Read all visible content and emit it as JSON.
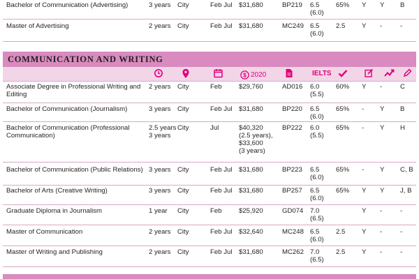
{
  "top_rows": [
    {
      "name": "Bachelor of Communication (Advertising)",
      "duration": "3 years",
      "location": "City",
      "intake": "Feb Jul",
      "fee": "$31,680",
      "code": "BP219",
      "ielts": "6.5\n(6.0)",
      "atar": "65%",
      "a": "Y",
      "b": "Y",
      "c": "B"
    },
    {
      "name": "Master of Advertising",
      "duration": "2 years",
      "location": "City",
      "intake": "Feb Jul",
      "fee": "$31,680",
      "code": "MC249",
      "ielts": "6.5\n(6.0)",
      "atar": "2.5",
      "a": "Y",
      "b": "-",
      "c": "-"
    }
  ],
  "section": {
    "title": "COMMUNICATION AND WRITING",
    "icons": {
      "duration": "clock-icon",
      "location": "location-pin-icon",
      "intake": "calendar-icon",
      "fee": "dollar-icon",
      "fee_year": "2020",
      "code": "document-icon",
      "ielts_label": "IELTS",
      "atar": "checkmark-icon",
      "a": "edit-icon",
      "b": "trend-up-icon",
      "c": "pencil-icon"
    },
    "accent": "#e0007a",
    "band_color": "#d98bbf",
    "strip_color": "#f3d5e8"
  },
  "rows": [
    {
      "name": "Associate Degree in\nProfessional Writing and Editing",
      "duration": "2 years",
      "location": "City",
      "intake": "Feb",
      "fee": "$29,760",
      "code": "AD016",
      "ielts": "6.0\n(5.5)",
      "atar": "60%",
      "a": "Y",
      "b": "-",
      "c": "C"
    },
    {
      "name": "Bachelor of Communication (Journalism)",
      "duration": "3 years",
      "location": "City",
      "intake": "Feb Jul",
      "fee": "$31,680",
      "code": "BP220",
      "ielts": "6.5\n(6.0)",
      "atar": "65%",
      "a": "-",
      "b": "Y",
      "c": "B"
    },
    {
      "name": "Bachelor of Communication\n(Professional Communication)",
      "duration": "2.5 years\n3 years",
      "location": "City",
      "intake": "Jul",
      "fee": "$40,320\n(2.5 years),\n$33,600\n(3 years)",
      "code": "BP222",
      "ielts": "6.0\n(5.5)",
      "atar": "65%",
      "a": "-",
      "b": "Y",
      "c": "H"
    },
    {
      "name": "Bachelor of Communication (Public Relations)",
      "duration": "3 years",
      "location": "City",
      "intake": "Feb Jul",
      "fee": "$31,680",
      "code": "BP223",
      "ielts": "6.5\n(6.0)",
      "atar": "65%",
      "a": "-",
      "b": "Y",
      "c": "C, B"
    },
    {
      "name": "Bachelor of Arts (Creative Writing)",
      "duration": "3 years",
      "location": "City",
      "intake": "Feb Jul",
      "fee": "$31,680",
      "code": "BP257",
      "ielts": "6.5\n(6.0)",
      "atar": "65%",
      "a": "Y",
      "b": "Y",
      "c": "J, B"
    },
    {
      "name": "Graduate Diploma in Journalism",
      "duration": "1 year",
      "location": "City",
      "intake": "Feb",
      "fee": "$25,920",
      "code": "GD074",
      "ielts": "7.0\n(6.5)",
      "atar": "",
      "a": "Y",
      "b": "-",
      "c": "-"
    },
    {
      "name": "Master of Communication",
      "duration": "2 years",
      "location": "City",
      "intake": "Feb Jul",
      "fee": "$32,640",
      "code": "MC248",
      "ielts": "6.5\n(6.0)",
      "atar": "2.5",
      "a": "Y",
      "b": "-",
      "c": "-"
    },
    {
      "name": "Master of Writing and Publishing",
      "duration": "2 years",
      "location": "City",
      "intake": "Feb Jul",
      "fee": "$31,680",
      "code": "MC262",
      "ielts": "7.0\n(6.5)",
      "atar": "2.5",
      "a": "Y",
      "b": "-",
      "c": "-"
    }
  ]
}
